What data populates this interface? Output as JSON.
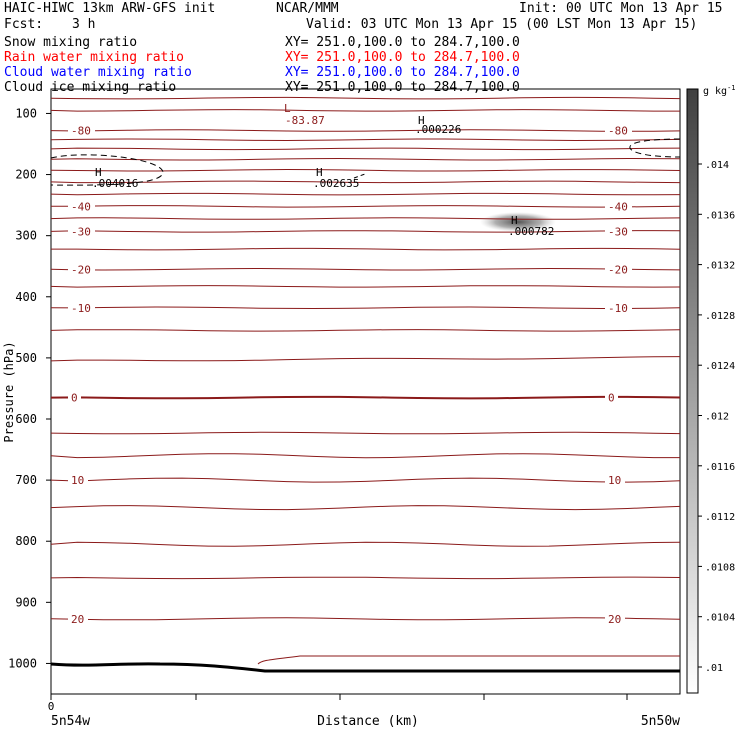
{
  "header": {
    "model": "HAIC-HIWC 13km ARW-GFS init",
    "center": "NCAR/MMM",
    "init": "Init: 00 UTC Mon 13 Apr 15",
    "fcst_label": "Fcst:",
    "fcst_value": "3 h",
    "valid": "Valid: 03 UTC Mon 13 Apr 15 (00 LST Mon 13 Apr 15)"
  },
  "fields": [
    {
      "name": "Snow mixing ratio",
      "xy": "XY= 251.0,100.0 to 284.7,100.0",
      "color": "#000000"
    },
    {
      "name": "Rain water mixing ratio",
      "xy": "XY= 251.0,100.0 to 284.7,100.0",
      "color": "#ff0000"
    },
    {
      "name": "Cloud water mixing ratio",
      "xy": "XY= 251.0,100.0 to 284.7,100.0",
      "color": "#0000ff"
    },
    {
      "name": "Cloud ice mixing ratio",
      "xy": "XY= 251.0,100.0 to 284.7,100.0",
      "color": "#000000"
    }
  ],
  "chart_data": {
    "type": "contour-cross-section",
    "xlabel": "Distance (km)",
    "ylabel": "Pressure (hPa)",
    "x_ticks": [
      {
        "value": 0,
        "label": "0"
      }
    ],
    "x_end_labels": {
      "left": "5n54w",
      "right": "5n50w"
    },
    "ylim": [
      1050,
      60
    ],
    "y_ticks": [
      100,
      200,
      300,
      400,
      500,
      600,
      700,
      800,
      900,
      1000
    ],
    "temperature_contours": {
      "color": "#8b1a1a",
      "interval_c": 5,
      "levels_p": [
        75,
        95,
        128,
        143,
        158,
        175,
        193,
        212,
        232,
        252,
        272,
        293,
        322,
        355,
        383,
        418,
        455,
        505,
        565,
        623,
        660,
        700,
        745,
        805,
        860,
        927
      ],
      "labeled": [
        {
          "label": "-80",
          "side": "both",
          "p": 128
        },
        {
          "label": "-40",
          "side": "both",
          "p": 252
        },
        {
          "label": "-30",
          "side": "both",
          "p": 293
        },
        {
          "label": "-20",
          "side": "both",
          "p": 355
        },
        {
          "label": "-10",
          "side": "both",
          "p": 418
        },
        {
          "label": "0",
          "side": "both",
          "p": 565
        },
        {
          "label": "10",
          "side": "both",
          "p": 700
        },
        {
          "label": "20",
          "side": "both",
          "p": 927
        }
      ],
      "minimum": {
        "marker": "L",
        "value": "-83.87"
      }
    },
    "maxima": [
      {
        "marker": "H",
        "value": ".000226"
      },
      {
        "marker": "H",
        "value": ".004016"
      },
      {
        "marker": "H",
        "value": ".002635"
      },
      {
        "marker": "H",
        "value": ".000782"
      }
    ],
    "colorbar": {
      "unit_prefix": "g kg",
      "unit_exp": "-1",
      "labels": [
        ".01",
        ".0104",
        ".0108",
        ".0112",
        ".0116",
        ".012",
        ".0124",
        ".0128",
        ".0132",
        ".0136",
        ".014"
      ]
    }
  }
}
